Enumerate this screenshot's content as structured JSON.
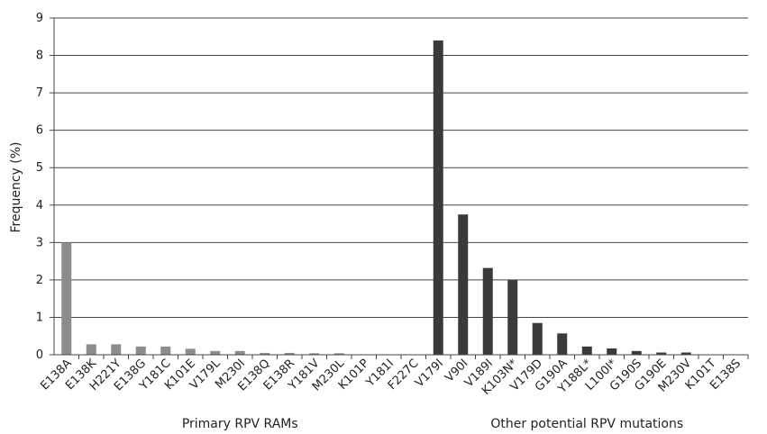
{
  "chart_data": {
    "type": "bar",
    "ylabel": "Frequency (%)",
    "ylim": [
      0,
      9
    ],
    "yticks": [
      0,
      1,
      2,
      3,
      4,
      5,
      6,
      7,
      8,
      9
    ],
    "grid": "horizontal",
    "categories": [
      "E138A",
      "E138K",
      "H221Y",
      "E138G",
      "Y181C",
      "K101E",
      "V179L",
      "M230I",
      "E138Q",
      "E138R",
      "Y181V",
      "M230L",
      "K101P",
      "Y181I",
      "F227C",
      "V179I",
      "V90I",
      "V189I",
      "K103N*",
      "V179D",
      "G190A",
      "Y188L*",
      "L100I*",
      "G190S",
      "G190E",
      "M230V",
      "K101T",
      "E138S"
    ],
    "values": [
      3.0,
      0.28,
      0.28,
      0.22,
      0.22,
      0.16,
      0.1,
      0.1,
      0.05,
      0.05,
      0.04,
      0.04,
      0.0,
      0.0,
      0.0,
      8.4,
      3.75,
      2.32,
      2.0,
      0.85,
      0.57,
      0.22,
      0.17,
      0.1,
      0.06,
      0.06,
      0.0,
      0.0
    ],
    "groups": [
      {
        "label": "Primary RPV RAMs",
        "start": 0,
        "end": 14,
        "color": "#8c8c8c"
      },
      {
        "label": "Other potential RPV mutations",
        "start": 15,
        "end": 27,
        "color": "#3a3a3a"
      }
    ]
  }
}
